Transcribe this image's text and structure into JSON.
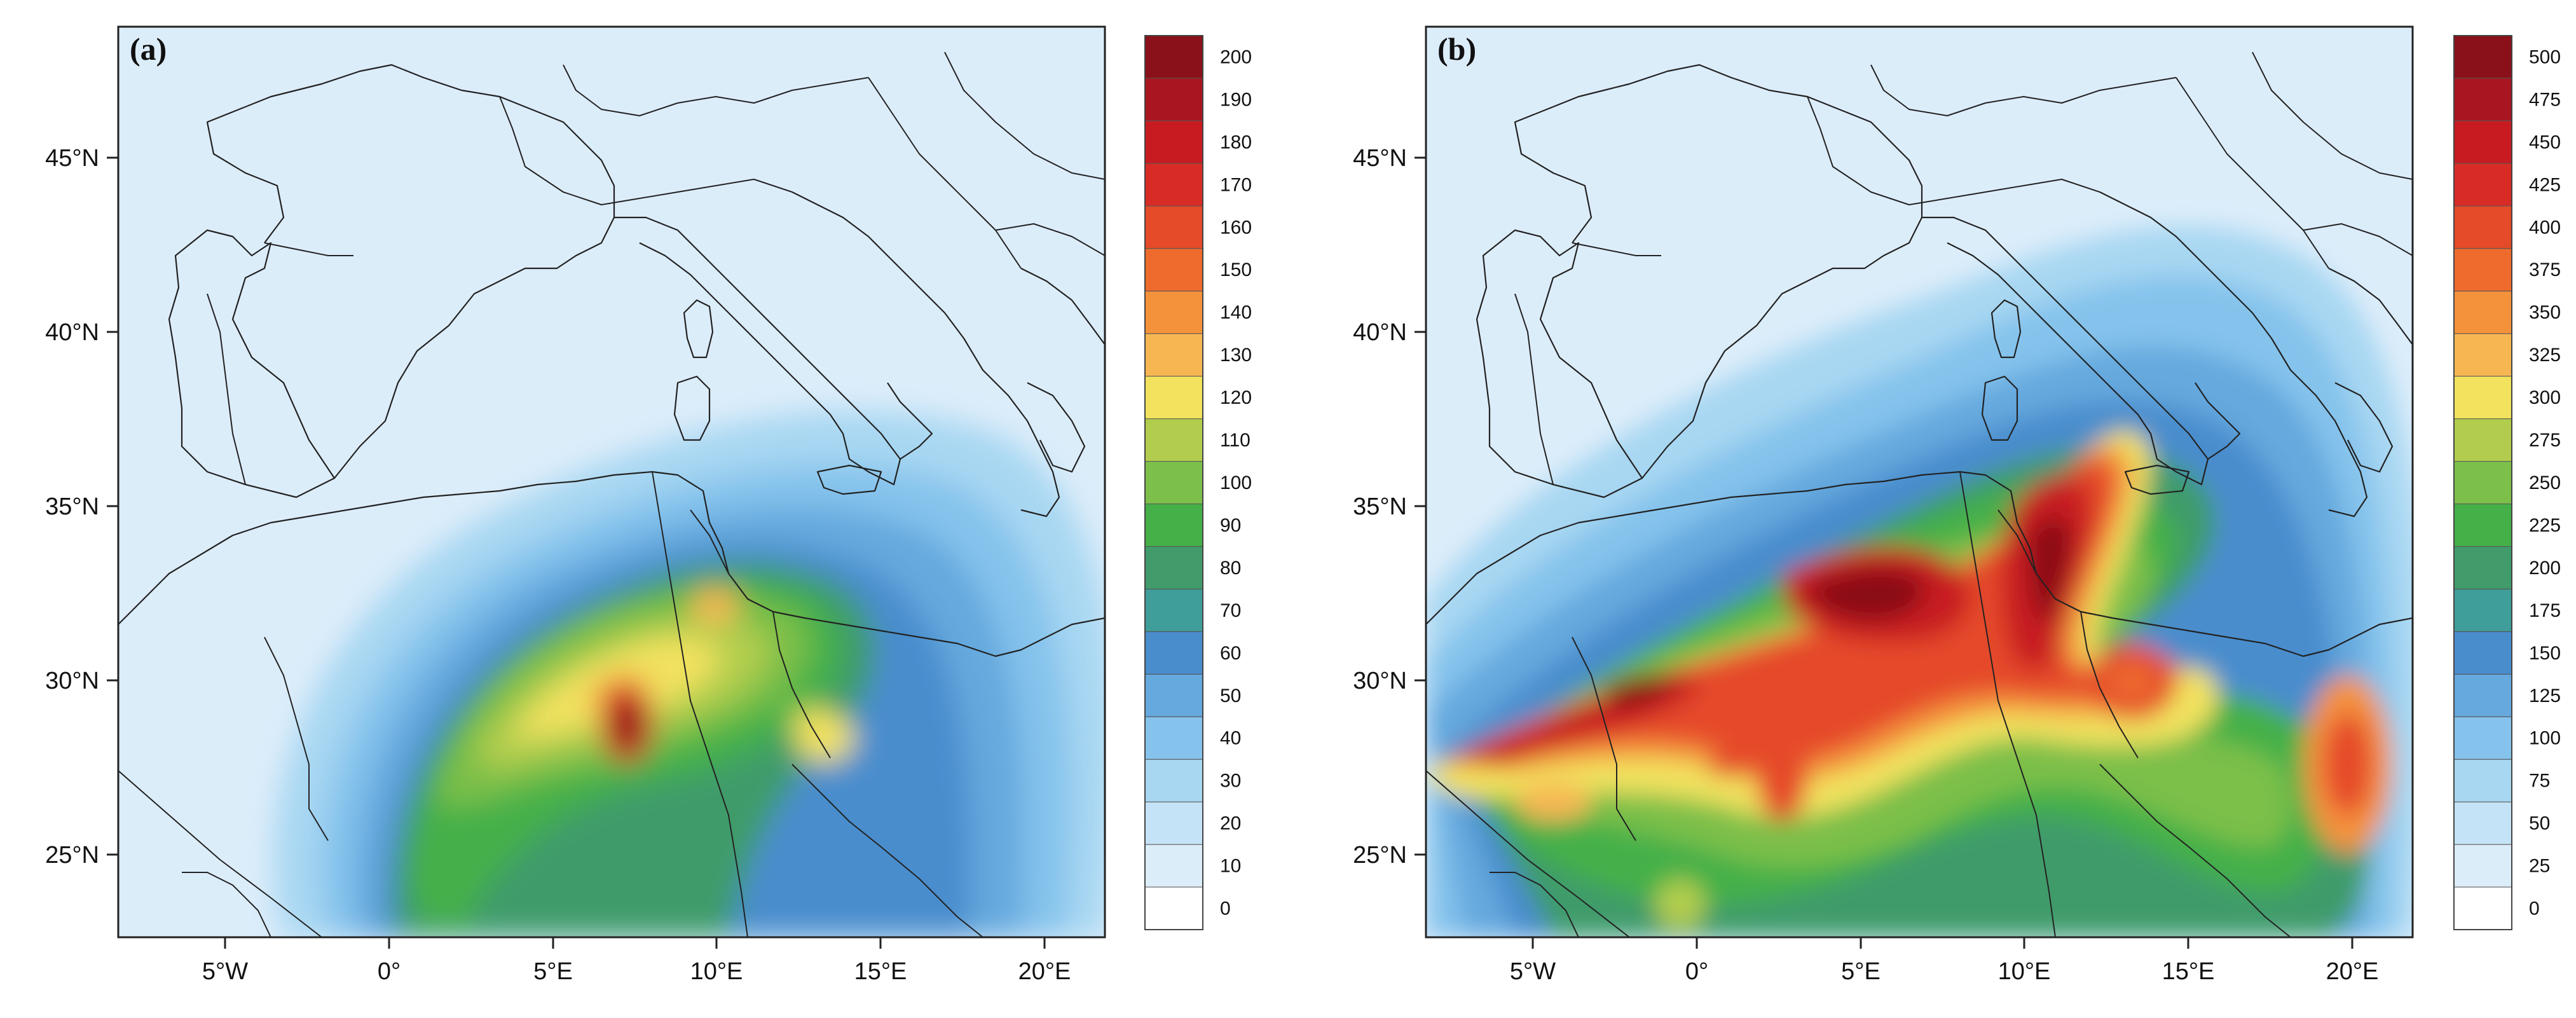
{
  "figure": {
    "panels": [
      {
        "id": "a",
        "letter": "(a)",
        "lat_ticks": [
          "45°N",
          "40°N",
          "35°N",
          "30°N",
          "25°N"
        ],
        "lon_ticks": [
          "5°W",
          "0°",
          "5°E",
          "10°E",
          "15°E",
          "20°E"
        ],
        "colorbar": {
          "levels": [
            "0",
            "10",
            "20",
            "30",
            "40",
            "50",
            "60",
            "70",
            "80",
            "90",
            "100",
            "110",
            "120",
            "130",
            "140",
            "150",
            "160",
            "170",
            "180",
            "190",
            "200"
          ],
          "colors": [
            "#ffffff",
            "#dcedfa",
            "#c4e3f6",
            "#a8d7f2",
            "#85c3ec",
            "#65a9de",
            "#4a8dcd",
            "#3f9d9a",
            "#419b6a",
            "#45b048",
            "#7cbf4a",
            "#b2cd4e",
            "#f2e25e",
            "#f6b753",
            "#f4923c",
            "#ee6b2d",
            "#e54a29",
            "#d92b25",
            "#c81b21",
            "#a91520",
            "#8a1119"
          ]
        }
      },
      {
        "id": "b",
        "letter": "(b)",
        "lat_ticks": [
          "45°N",
          "40°N",
          "35°N",
          "30°N",
          "25°N"
        ],
        "lon_ticks": [
          "5°W",
          "0°",
          "5°E",
          "10°E",
          "15°E",
          "20°E"
        ],
        "colorbar": {
          "levels": [
            "0",
            "25",
            "50",
            "75",
            "100",
            "125",
            "150",
            "175",
            "200",
            "225",
            "250",
            "275",
            "300",
            "325",
            "350",
            "375",
            "400",
            "425",
            "450",
            "475",
            "500"
          ],
          "colors": [
            "#ffffff",
            "#dcedfa",
            "#c4e3f6",
            "#a8d7f2",
            "#85c3ec",
            "#65a9de",
            "#4a8dcd",
            "#3f9d9a",
            "#419b6a",
            "#45b048",
            "#7cbf4a",
            "#b2cd4e",
            "#f2e25e",
            "#f6b753",
            "#f4923c",
            "#ee6b2d",
            "#e54a29",
            "#d92b25",
            "#c81b21",
            "#a91520",
            "#8a1119"
          ]
        }
      }
    ]
  }
}
